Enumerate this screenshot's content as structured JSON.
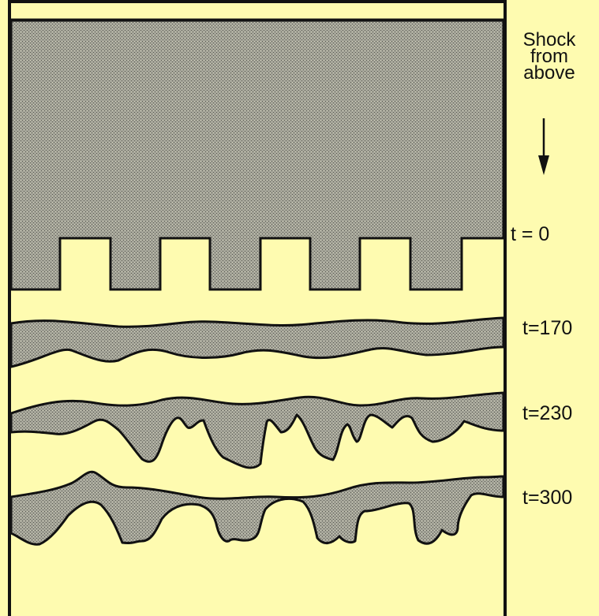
{
  "title": {
    "line1": "Shock",
    "line2": "from",
    "line3": "above"
  },
  "labels": {
    "t0": "t = 0",
    "t170": "t=170",
    "t230": "t=230",
    "t300": "t=300"
  },
  "colors": {
    "background": "#fefbb0",
    "fluid_fill": "#9e9e92",
    "outline": "#111111"
  }
}
